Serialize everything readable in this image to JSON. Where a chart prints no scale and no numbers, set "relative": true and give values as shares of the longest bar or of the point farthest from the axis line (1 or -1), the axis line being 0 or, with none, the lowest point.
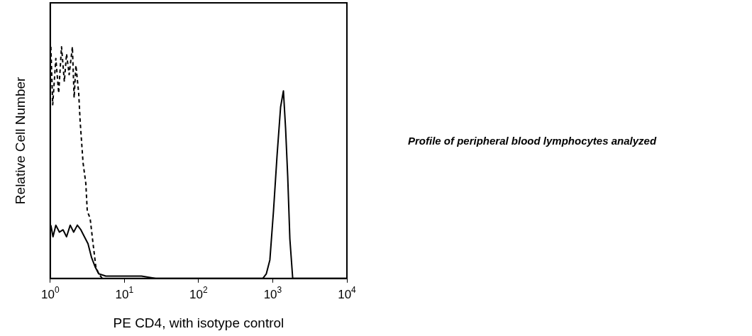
{
  "chart_data": {
    "type": "line",
    "relative": true,
    "log": "x",
    "xlabel": "PE CD4, with isotype control",
    "ylabel": "Relative Cell Number",
    "xlim": [
      1,
      10000
    ],
    "xticks": [
      {
        "value": 1,
        "label": "10$^{0}$"
      },
      {
        "value": 10,
        "label": "10$^{1}$"
      },
      {
        "value": 100,
        "label": "10$^{2}$"
      },
      {
        "value": 1000,
        "label": "10$^{3}$"
      },
      {
        "value": 10000,
        "label": "10$^{4}$"
      }
    ],
    "grid": false,
    "legend": false,
    "marker": "none",
    "annotations": [
      "Profile of peripheral blood lymphocytes analyzed"
    ],
    "series": [
      {
        "color": "#000000",
        "line_style": "dashed",
        "x": [
          1.02,
          1.08,
          1.19,
          1.3,
          1.42,
          1.55,
          1.66,
          1.8,
          1.99,
          2.1,
          2.22,
          2.42,
          2.53,
          2.77,
          3.02,
          3.16,
          3.45,
          3.78,
          4.12,
          4.51,
          5.03
        ],
        "values": [
          1,
          0.75,
          0.95,
          0.8,
          1,
          0.85,
          0.97,
          0.88,
          1,
          0.78,
          0.92,
          0.8,
          0.68,
          0.5,
          0.41,
          0.29,
          0.26,
          0.15,
          0.05,
          0.02,
          0
        ]
      },
      {
        "color": "#000000",
        "line_style": "solid",
        "x": [
          1.02,
          1.09,
          1.19,
          1.33,
          1.49,
          1.66,
          1.86,
          2.07,
          2.32,
          2.59,
          2.89,
          3.23,
          3.61,
          4.03,
          4.51,
          5.62,
          7.0,
          17.0,
          26.4,
          733,
          819,
          915,
          1023,
          1143,
          1276,
          1393,
          1489,
          1592,
          1702,
          1859,
          2218,
          10000
        ],
        "values": [
          0.23,
          0.18,
          0.23,
          0.2,
          0.21,
          0.18,
          0.23,
          0.2,
          0.23,
          0.21,
          0.18,
          0.15,
          0.09,
          0.05,
          0.02,
          0.01,
          0.01,
          0.01,
          0,
          0,
          0.02,
          0.08,
          0.29,
          0.53,
          0.74,
          0.81,
          0.65,
          0.44,
          0.17,
          0,
          0,
          0
        ]
      }
    ]
  }
}
